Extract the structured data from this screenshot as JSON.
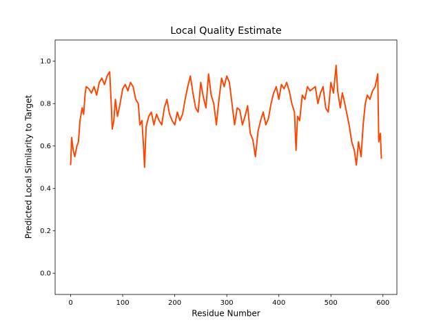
{
  "chart_data": {
    "type": "line",
    "title": "Local Quality Estimate",
    "x_label": "Residue Number",
    "y_label": "Predicted Local Similarity to Target",
    "xlim": [
      -29.8,
      626.8
    ],
    "ylim": [
      -0.1,
      1.1
    ],
    "xticks": [
      0,
      100,
      200,
      300,
      400,
      500,
      600
    ],
    "yticks": [
      {
        "value": 0,
        "label": "0.0"
      },
      0.2,
      0.4,
      0.6,
      0.8,
      {
        "value": 1,
        "label": "1.0"
      }
    ],
    "series": [
      {
        "name": "Local Quality",
        "color": "#ff4500",
        "x": [
          0,
          2,
          5,
          8,
          12,
          15,
          18,
          22,
          25,
          28,
          30,
          35,
          40,
          45,
          50,
          55,
          60,
          65,
          70,
          75,
          78,
          80,
          83,
          86,
          90,
          95,
          100,
          105,
          110,
          115,
          120,
          125,
          130,
          133,
          137,
          140,
          142,
          145,
          150,
          155,
          160,
          165,
          170,
          175,
          180,
          185,
          190,
          195,
          200,
          205,
          210,
          215,
          220,
          225,
          230,
          235,
          240,
          245,
          250,
          255,
          260,
          265,
          270,
          275,
          280,
          285,
          290,
          295,
          300,
          305,
          310,
          315,
          320,
          325,
          330,
          335,
          340,
          345,
          350,
          355,
          360,
          365,
          370,
          375,
          380,
          385,
          390,
          395,
          400,
          405,
          410,
          415,
          420,
          425,
          430,
          433,
          436,
          440,
          445,
          450,
          455,
          460,
          465,
          470,
          475,
          480,
          485,
          490,
          495,
          500,
          505,
          510,
          513,
          518,
          522,
          525,
          530,
          535,
          540,
          545,
          549,
          553,
          558,
          562,
          566,
          570,
          575,
          580,
          585,
          590,
          592,
          595,
          597
        ],
        "values": [
          0.51,
          0.64,
          0.58,
          0.55,
          0.6,
          0.62,
          0.72,
          0.78,
          0.75,
          0.85,
          0.88,
          0.87,
          0.85,
          0.88,
          0.84,
          0.9,
          0.92,
          0.89,
          0.93,
          0.95,
          0.8,
          0.68,
          0.72,
          0.82,
          0.74,
          0.8,
          0.87,
          0.89,
          0.86,
          0.9,
          0.88,
          0.82,
          0.8,
          0.7,
          0.72,
          0.6,
          0.5,
          0.69,
          0.74,
          0.76,
          0.7,
          0.75,
          0.72,
          0.7,
          0.78,
          0.82,
          0.75,
          0.72,
          0.7,
          0.76,
          0.72,
          0.75,
          0.82,
          0.88,
          0.93,
          0.85,
          0.78,
          0.76,
          0.9,
          0.83,
          0.78,
          0.94,
          0.84,
          0.8,
          0.7,
          0.82,
          0.92,
          0.88,
          0.93,
          0.9,
          0.8,
          0.7,
          0.78,
          0.77,
          0.7,
          0.74,
          0.79,
          0.66,
          0.63,
          0.55,
          0.67,
          0.72,
          0.76,
          0.7,
          0.73,
          0.8,
          0.85,
          0.88,
          0.82,
          0.89,
          0.87,
          0.9,
          0.86,
          0.8,
          0.76,
          0.58,
          0.74,
          0.72,
          0.84,
          0.82,
          0.88,
          0.86,
          0.87,
          0.88,
          0.8,
          0.85,
          0.88,
          0.78,
          0.76,
          0.9,
          0.85,
          0.98,
          0.86,
          0.78,
          0.85,
          0.82,
          0.76,
          0.7,
          0.62,
          0.58,
          0.51,
          0.62,
          0.55,
          0.7,
          0.8,
          0.84,
          0.82,
          0.86,
          0.88,
          0.94,
          0.62,
          0.66,
          0.54
        ]
      }
    ]
  }
}
